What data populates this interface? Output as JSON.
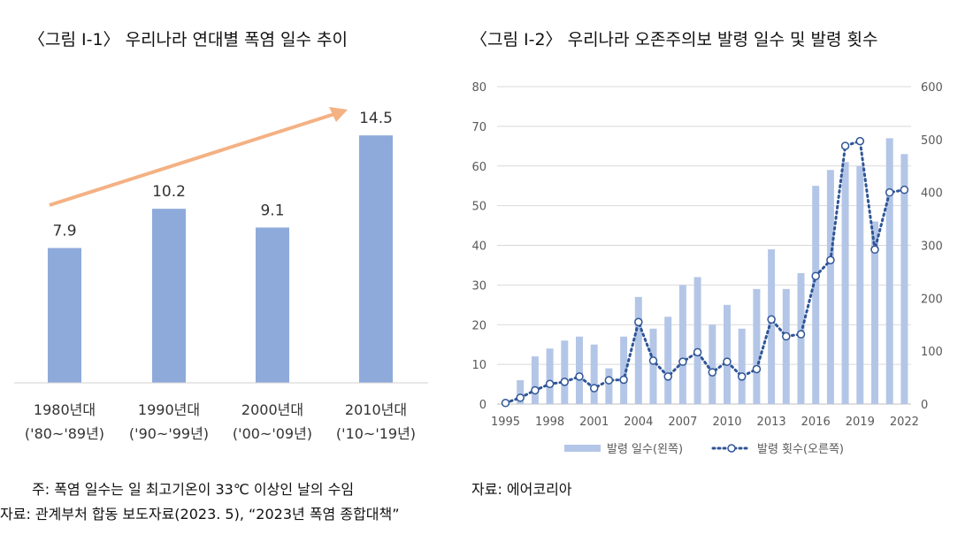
{
  "left": {
    "title": "〈그림 Ⅰ-1〉 우리나라 연대별 폭염 일수 추이",
    "notes": [
      "주: 폭염 일수는 일 최고기온이 33℃ 이상인 날의 수임",
      "자료: 관계부처 합동 보도자료(2023. 5), “2023년 폭염 종합대책”"
    ]
  },
  "right": {
    "title": "〈그림 Ⅰ-2〉 우리나라 오존주의보 발령 일수 및 발령 횟수",
    "notes": [
      "자료: 에어코리아"
    ]
  },
  "colors": {
    "left_bar": "#8eaadb",
    "arrow": "#f4b183",
    "right_bar": "#b4c6e7",
    "line": "#2f5597"
  },
  "chart_data": [
    {
      "type": "bar",
      "title": "〈그림 Ⅰ-1〉 우리나라 연대별 폭염 일수 추이",
      "categories": [
        "1980년대",
        "1990년대",
        "2000년대",
        "2010년대"
      ],
      "category_sublabels": [
        "('80~'89년)",
        "('90~'99년)",
        "('00~'09년)",
        "('10~'19년)"
      ],
      "values": [
        7.9,
        10.2,
        9.1,
        14.5
      ],
      "value_labels": [
        "7.9",
        "10.2",
        "9.1",
        "14.5"
      ],
      "trend_arrow": true
    },
    {
      "type": "bar",
      "title": "〈그림 Ⅰ-2〉 우리나라 오존주의보 발령 일수 및 발령 횟수",
      "x": [
        1995,
        1996,
        1997,
        1998,
        1999,
        2000,
        2001,
        2002,
        2003,
        2004,
        2005,
        2006,
        2007,
        2008,
        2009,
        2010,
        2011,
        2012,
        2013,
        2014,
        2015,
        2016,
        2017,
        2018,
        2019,
        2020,
        2021,
        2022
      ],
      "x_tick_labels": [
        "1995",
        "1998",
        "2001",
        "2004",
        "2007",
        "2010",
        "2013",
        "2016",
        "2019",
        "2022"
      ],
      "y_left_ticks": [
        "0",
        "10",
        "20",
        "30",
        "40",
        "50",
        "60",
        "70",
        "80"
      ],
      "y_right_ticks": [
        "0",
        "100",
        "200",
        "300",
        "400",
        "500",
        "600"
      ],
      "ylim_left": [
        0,
        80
      ],
      "ylim_right": [
        0,
        600
      ],
      "series": [
        {
          "name": "발령 일수(왼쪽)",
          "type": "bar",
          "axis": "left",
          "values": [
            0,
            6,
            12,
            14,
            16,
            17,
            15,
            9,
            17,
            27,
            19,
            22,
            30,
            32,
            20,
            25,
            19,
            29,
            39,
            29,
            33,
            55,
            59,
            61,
            60,
            46,
            67,
            63
          ]
        },
        {
          "name": "발령 횟수(오른쪽)",
          "type": "line",
          "axis": "right",
          "values": [
            2,
            12,
            26,
            38,
            42,
            52,
            30,
            45,
            46,
            155,
            82,
            52,
            80,
            98,
            60,
            80,
            52,
            66,
            160,
            128,
            132,
            242,
            272,
            488,
            497,
            292,
            400,
            405
          ]
        }
      ],
      "grid": true,
      "legend": "bottom"
    }
  ]
}
